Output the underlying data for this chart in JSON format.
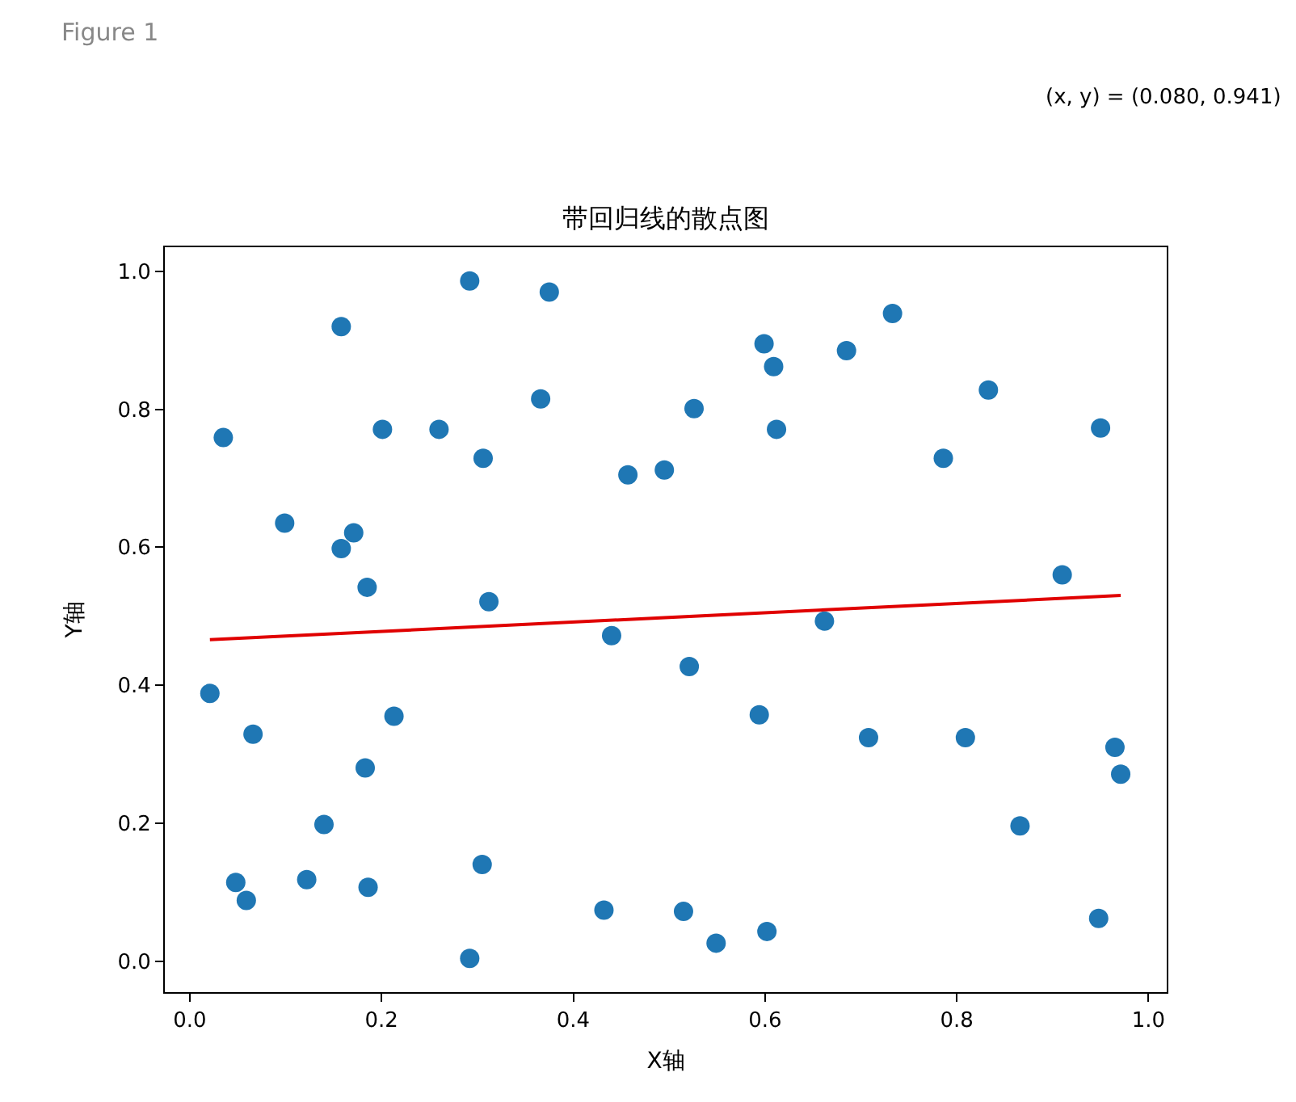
{
  "chart_data": {
    "type": "scatter",
    "title": "带回归线的散点图",
    "xlabel": "X轴",
    "ylabel": "Y轴",
    "annotations": [
      "Figure 1",
      "(x, y) = (0.080, 0.941)"
    ],
    "series": [
      {
        "color": "#1f77b4",
        "marker": "circle",
        "x": [
          0.021,
          0.066,
          0.048,
          0.059,
          0.122,
          0.14,
          0.183,
          0.186,
          0.213,
          0.305,
          0.292,
          0.432,
          0.44,
          0.158,
          0.292,
          0.375,
          0.035,
          0.201,
          0.26,
          0.366,
          0.306,
          0.457,
          0.495,
          0.099,
          0.171,
          0.158,
          0.185,
          0.312,
          0.733,
          0.599,
          0.609,
          0.685,
          0.526,
          0.612,
          0.833,
          0.786,
          0.95,
          0.91,
          0.662,
          0.521,
          0.594,
          0.708,
          0.809,
          0.965,
          0.971,
          0.866,
          0.515,
          0.549,
          0.602,
          0.948
        ],
        "values": [
          0.388,
          0.329,
          0.114,
          0.088,
          0.118,
          0.198,
          0.28,
          0.107,
          0.355,
          0.14,
          0.004,
          0.074,
          0.472,
          0.92,
          0.986,
          0.97,
          0.759,
          0.771,
          0.771,
          0.815,
          0.729,
          0.705,
          0.712,
          0.635,
          0.621,
          0.598,
          0.542,
          0.521,
          0.939,
          0.895,
          0.862,
          0.885,
          0.801,
          0.771,
          0.828,
          0.729,
          0.773,
          0.56,
          0.493,
          0.427,
          0.357,
          0.324,
          0.324,
          0.31,
          0.271,
          0.196,
          0.072,
          0.026,
          0.043,
          0.062
        ]
      },
      {
        "type": "line",
        "color": "#e00000",
        "line_style": "solid",
        "x": [
          0.021,
          0.971
        ],
        "values": [
          0.466,
          0.53
        ]
      }
    ],
    "xlim": [
      -0.026,
      1.019
    ],
    "ylim": [
      -0.045,
      1.035
    ],
    "xticks": [
      {
        "value": 0,
        "label": "0.0"
      },
      0.2,
      0.4,
      0.6,
      0.8,
      {
        "value": 1,
        "label": "1.0"
      }
    ],
    "yticks": [
      {
        "value": 0,
        "label": "0.0"
      },
      0.2,
      0.4,
      0.6,
      0.8,
      {
        "value": 1,
        "label": "1.0"
      }
    ]
  }
}
